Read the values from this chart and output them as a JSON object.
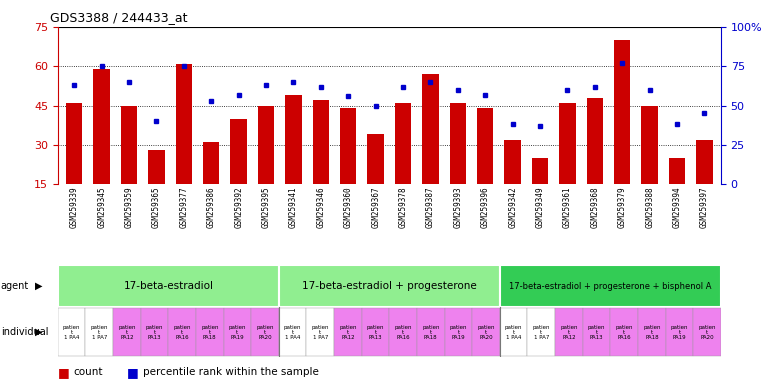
{
  "title": "GDS3388 / 244433_at",
  "samples": [
    "GSM259339",
    "GSM259345",
    "GSM259359",
    "GSM259365",
    "GSM259377",
    "GSM259386",
    "GSM259392",
    "GSM259395",
    "GSM259341",
    "GSM259346",
    "GSM259360",
    "GSM259367",
    "GSM259378",
    "GSM259387",
    "GSM259393",
    "GSM259396",
    "GSM259342",
    "GSM259349",
    "GSM259361",
    "GSM259368",
    "GSM259379",
    "GSM259388",
    "GSM259394",
    "GSM259397"
  ],
  "counts": [
    46,
    59,
    45,
    28,
    61,
    31,
    40,
    45,
    49,
    47,
    44,
    34,
    46,
    57,
    46,
    44,
    32,
    25,
    46,
    48,
    70,
    45,
    25,
    32
  ],
  "percentiles": [
    63,
    75,
    65,
    40,
    75,
    53,
    57,
    63,
    65,
    62,
    56,
    50,
    62,
    65,
    60,
    57,
    38,
    37,
    60,
    62,
    77,
    60,
    38,
    45
  ],
  "bar_color": "#cc0000",
  "dot_color": "#0000cc",
  "ylim_left": [
    15,
    75
  ],
  "ylim_right": [
    0,
    100
  ],
  "yticks_left": [
    15,
    30,
    45,
    60,
    75
  ],
  "yticks_right": [
    0,
    25,
    50,
    75,
    100
  ],
  "ytick_labels_right": [
    "0",
    "25",
    "50",
    "75",
    "100%"
  ],
  "agent_group1_label": "17-beta-estradiol",
  "agent_group2_label": "17-beta-estradiol + progesterone",
  "agent_group3_label": "17-beta-estradiol + progesterone + bisphenol A",
  "agent_color12": "#90ee90",
  "agent_color3": "#33cc55",
  "individual_colors": [
    "#ffffff",
    "#ffffff",
    "#ee82ee",
    "#ee82ee",
    "#ee82ee",
    "#ee82ee",
    "#ee82ee",
    "#ee82ee",
    "#ffffff",
    "#ffffff",
    "#ee82ee",
    "#ee82ee",
    "#ee82ee",
    "#ee82ee",
    "#ee82ee",
    "#ee82ee",
    "#ffffff",
    "#ffffff",
    "#ee82ee",
    "#ee82ee",
    "#ee82ee",
    "#ee82ee",
    "#ee82ee",
    "#ee82ee"
  ],
  "indiv_labels": [
    "patien\nt\n1 PA4",
    "patien\nt\n1 PA7",
    "patien\nt\nPA12",
    "patien\nt\nPA13",
    "patien\nt\nPA16",
    "patien\nt\nPA18",
    "patien\nt\nPA19",
    "patien\nt\nPA20",
    "patien\nt\n1 PA4",
    "patien\nt\n1 PA7",
    "patien\nt\nPA12",
    "patien\nt\nPA13",
    "patien\nt\nPA16",
    "patien\nt\nPA18",
    "patien\nt\nPA19",
    "patien\nt\nPA20",
    "patien\nt\n1 PA4",
    "patien\nt\n1 PA7",
    "patien\nt\nPA12",
    "patien\nt\nPA13",
    "patien\nt\nPA16",
    "patien\nt\nPA18",
    "patien\nt\nPA19",
    "patien\nt\nPA20"
  ],
  "background_color": "#ffffff",
  "tick_color_left": "#cc0000",
  "tick_color_right": "#0000cc",
  "xticklabel_bg": "#cccccc",
  "bar_width": 0.6
}
